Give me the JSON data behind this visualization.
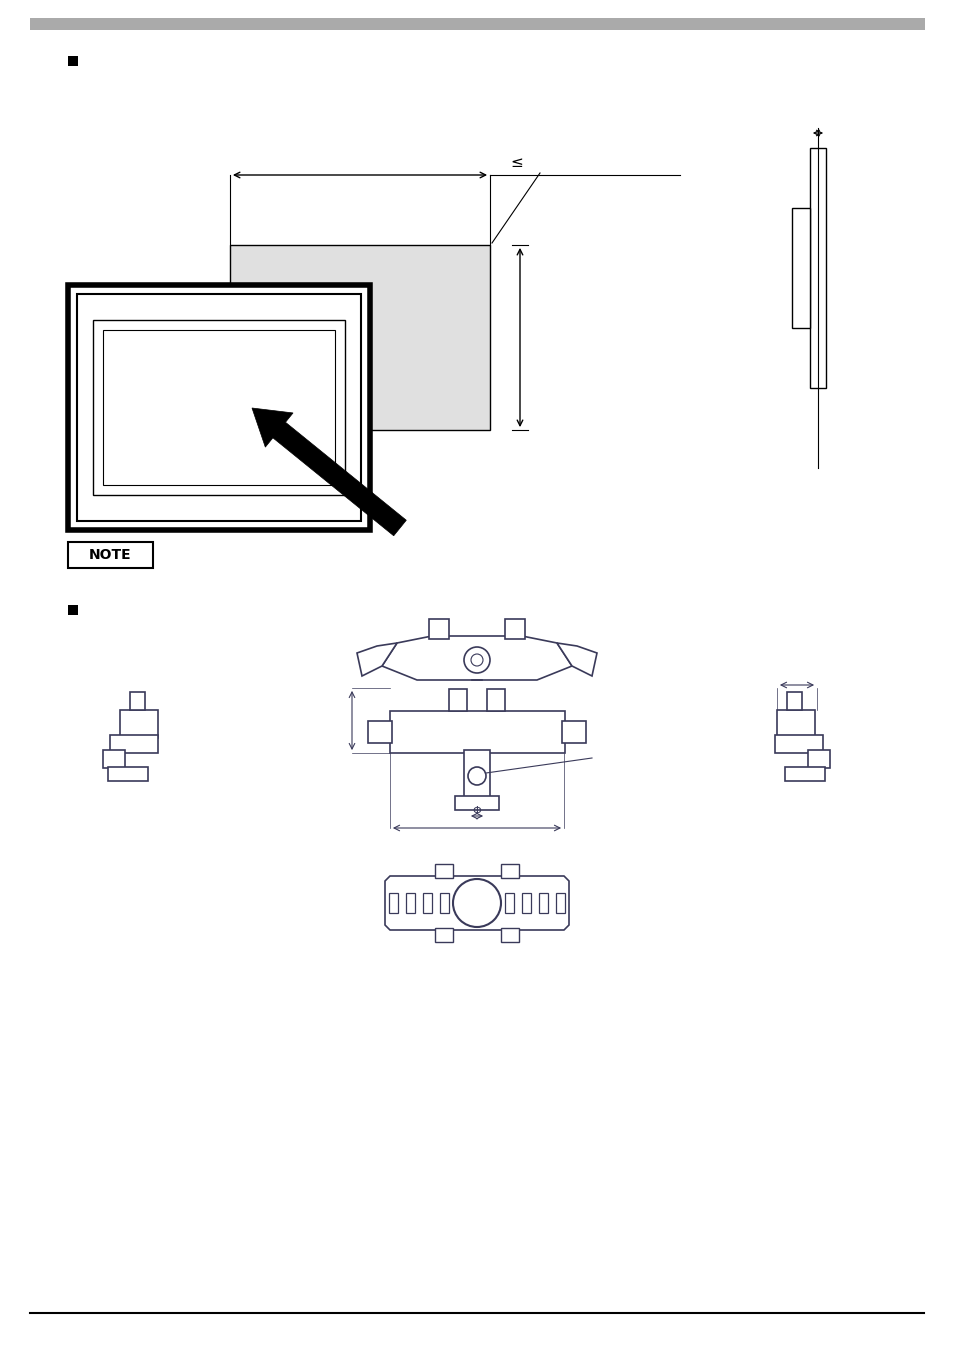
{
  "bg_color": "#ffffff",
  "header_bar_color": "#aaaaaa",
  "line_color": "#000000",
  "fastener_color": "#3a3a5a",
  "panel_fill": "#e0e0e0",
  "note_text": "NOTE"
}
